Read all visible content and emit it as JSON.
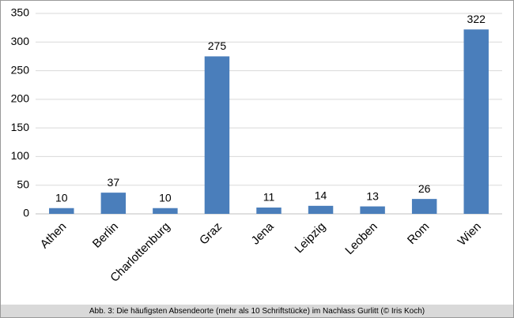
{
  "chart_data": {
    "type": "bar",
    "categories": [
      "Athen",
      "Berlin",
      "Charlottenburg",
      "Graz",
      "Jena",
      "Leipzig",
      "Leoben",
      "Rom",
      "Wien"
    ],
    "values": [
      10,
      37,
      10,
      275,
      11,
      14,
      13,
      26,
      322
    ],
    "color": "#4a7ebb",
    "ylim": [
      0,
      350
    ],
    "yticks": [
      0,
      50,
      100,
      150,
      200,
      250,
      300,
      350
    ],
    "grid": true,
    "caption": "Abb. 3: Die häufigsten Absendeorte (mehr als 10 Schriftstücke) im Nachlass Gurlitt (© Iris Koch)"
  }
}
